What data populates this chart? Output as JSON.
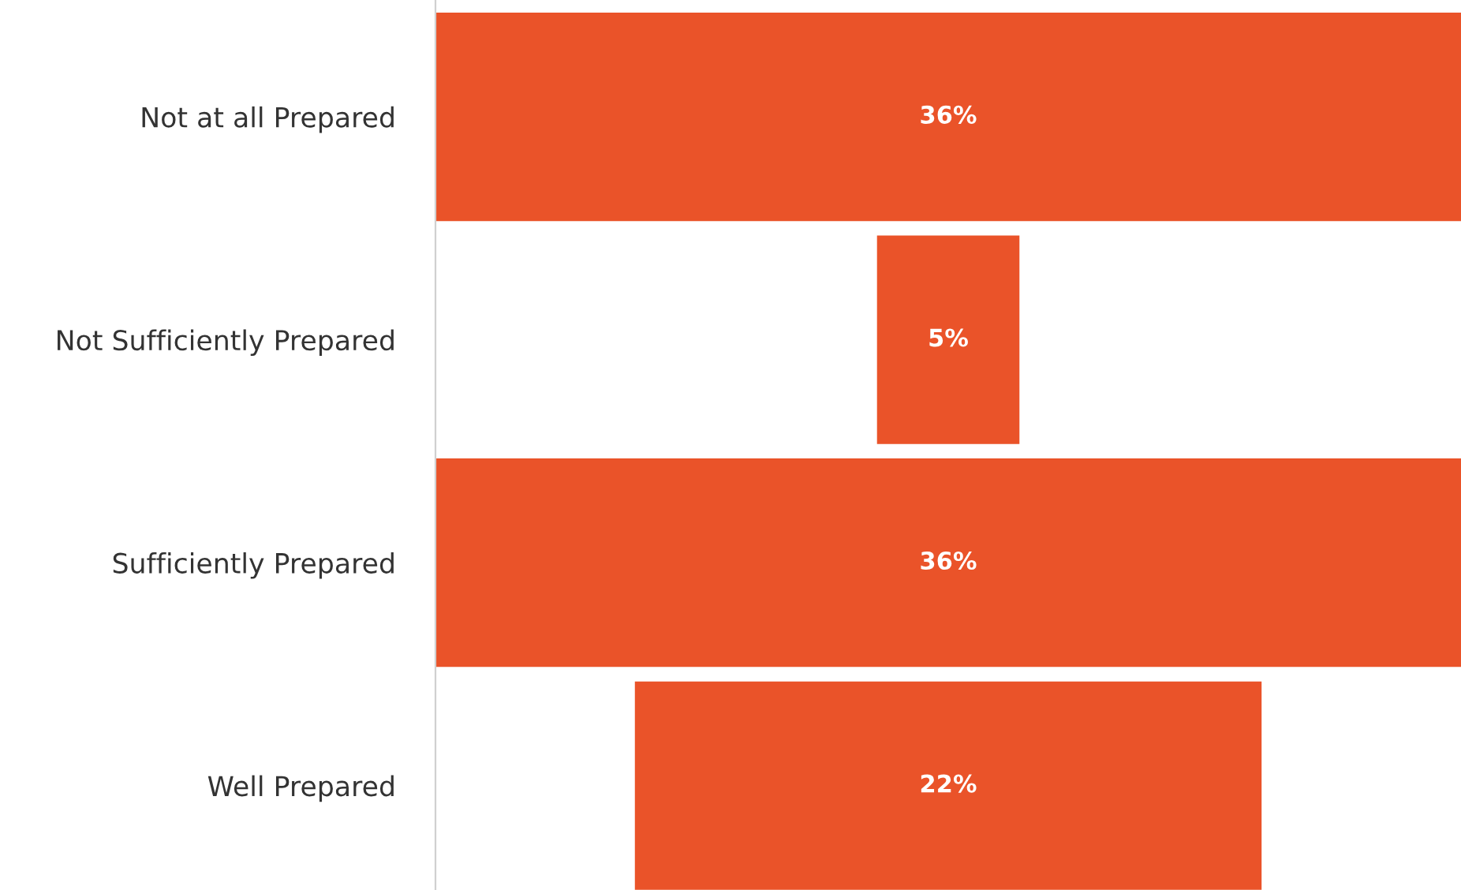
{
  "chart_data": {
    "type": "other",
    "categories": [
      "Not at all Prepared",
      "Not Sufficiently Prepared",
      "Sufficiently Prepared",
      "Well Prepared"
    ],
    "values": [
      36,
      5,
      36,
      22
    ],
    "value_labels": [
      "36%",
      "5%",
      "36%",
      "22%"
    ],
    "color": "#ea5329"
  }
}
